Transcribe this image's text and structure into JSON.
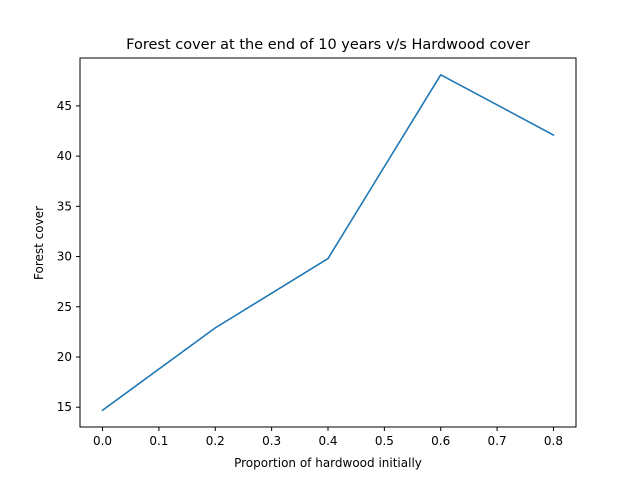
{
  "chart_data": {
    "type": "line",
    "title": "Forest cover at the end of 10 years v/s Hardwood cover",
    "xlabel": "Proportion of hardwood initially",
    "ylabel": "Forest cover",
    "x": [
      0.0,
      0.2,
      0.4,
      0.6,
      0.8
    ],
    "series": [
      {
        "values": [
          14.7,
          22.9,
          29.8,
          48.1,
          42.1
        ]
      }
    ],
    "xlim": [
      -0.04,
      0.84
    ],
    "ylim": [
      13.03,
      49.77
    ],
    "xticks": [
      0.0,
      0.1,
      0.2,
      0.3,
      0.4,
      0.5,
      0.6,
      0.7,
      0.8
    ],
    "xtick_labels": [
      "0.0",
      "0.1",
      "0.2",
      "0.3",
      "0.4",
      "0.5",
      "0.6",
      "0.7",
      "0.8"
    ],
    "yticks": [
      15,
      20,
      25,
      30,
      35,
      40,
      45
    ],
    "ytick_labels": [
      "15",
      "20",
      "25",
      "30",
      "35",
      "40",
      "45"
    ],
    "grid": false,
    "line_color": "#1f77b4"
  }
}
